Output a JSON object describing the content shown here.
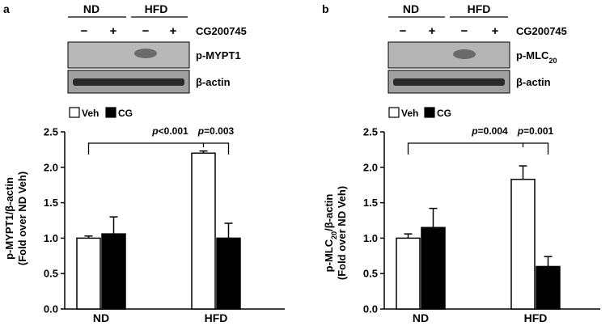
{
  "chart_data": [
    {
      "panel_label": "a",
      "type": "bar",
      "blot": {
        "groups": [
          "ND",
          "HFD"
        ],
        "treatment_label": "CG200745",
        "lanes": [
          "−",
          "+",
          "−",
          "+"
        ],
        "rows": [
          "p-MYPT1",
          "β-actin"
        ]
      },
      "legend": [
        {
          "name": "Veh",
          "color": "#ffffff"
        },
        {
          "name": "CG",
          "color": "#000000"
        }
      ],
      "categories": [
        "ND",
        "HFD"
      ],
      "series": [
        {
          "name": "Veh",
          "values": [
            1.0,
            2.2
          ],
          "errors": [
            0.03,
            0.03
          ]
        },
        {
          "name": "CG",
          "values": [
            1.06,
            1.0
          ],
          "errors": [
            0.24,
            0.21
          ]
        }
      ],
      "ylabel_line1_pre": "p-MYPT1/β-actin",
      "ylabel_line1_sub": "",
      "ylabel_line1_post": "",
      "ylabel_line2": "(Fold over ND Veh)",
      "ylim": [
        0,
        2.5
      ],
      "yticks": [
        "0.0",
        "0.5",
        "1.0",
        "1.5",
        "2.0",
        "2.5"
      ],
      "annotations": [
        {
          "p_label": "p",
          "p_value": "<0.001"
        },
        {
          "p_label": "p",
          "p_value": "=0.003"
        }
      ]
    },
    {
      "panel_label": "b",
      "type": "bar",
      "blot": {
        "groups": [
          "ND",
          "HFD"
        ],
        "treatment_label": "CG200745",
        "lanes": [
          "−",
          "+",
          "−",
          "+"
        ],
        "rows_pre": [
          "p-MLC",
          "β-actin"
        ],
        "rows_sub": [
          "20",
          ""
        ]
      },
      "legend": [
        {
          "name": "Veh",
          "color": "#ffffff"
        },
        {
          "name": "CG",
          "color": "#000000"
        }
      ],
      "categories": [
        "ND",
        "HFD"
      ],
      "series": [
        {
          "name": "Veh",
          "values": [
            1.0,
            1.83
          ],
          "errors": [
            0.06,
            0.19
          ]
        },
        {
          "name": "CG",
          "values": [
            1.15,
            0.6
          ],
          "errors": [
            0.27,
            0.14
          ]
        }
      ],
      "ylabel_line1_pre": "p-MLC",
      "ylabel_line1_sub": "20",
      "ylabel_line1_post": "/β-actin",
      "ylabel_line2": "(Fold over ND Veh)",
      "ylim": [
        0,
        2.5
      ],
      "yticks": [
        "0.0",
        "0.5",
        "1.0",
        "1.5",
        "2.0",
        "2.5"
      ],
      "annotations": [
        {
          "p_label": "p",
          "p_value": "=0.004"
        },
        {
          "p_label": "p",
          "p_value": "=0.001"
        }
      ]
    }
  ]
}
